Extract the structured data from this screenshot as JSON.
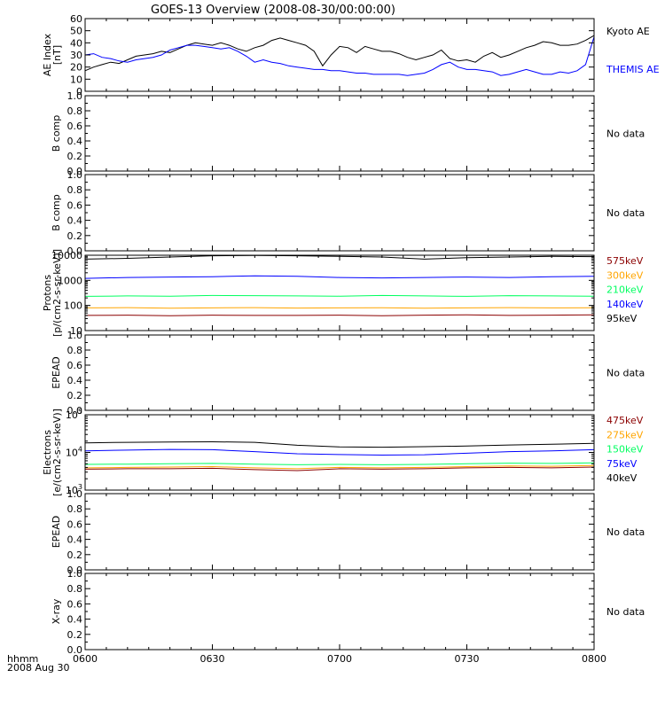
{
  "title": "GOES-13 Overview (2008-08-30/00:00:00)",
  "time_axis": {
    "label_line1": "hhmm",
    "label_line2": "2008 Aug 30",
    "ticks": [
      "0600",
      "0630",
      "0700",
      "0730",
      "0800"
    ],
    "range_minutes": [
      0,
      120
    ]
  },
  "colors": {
    "black": "#000000",
    "blue": "#0000ff",
    "green": "#00ff60",
    "orange": "#ffa500",
    "darkred": "#8b0000"
  },
  "chart_data": [
    {
      "type": "line",
      "ylabel": [
        "AE Index",
        "[nT]"
      ],
      "yticks": [
        "0",
        "10",
        "20",
        "30",
        "40",
        "50",
        "60"
      ],
      "ylim": [
        0,
        60
      ],
      "scale": "linear",
      "series": [
        {
          "name": "Kyoto AE",
          "color": "#000000",
          "x": [
            0,
            2,
            4,
            6,
            8,
            10,
            12,
            14,
            16,
            18,
            20,
            22,
            24,
            26,
            28,
            30,
            32,
            34,
            36,
            38,
            40,
            42,
            44,
            46,
            48,
            50,
            52,
            54,
            56,
            58,
            60,
            62,
            64,
            66,
            68,
            70,
            72,
            74,
            76,
            78,
            80,
            82,
            84,
            86,
            88,
            90,
            92,
            94,
            96,
            98,
            100,
            102,
            104,
            106,
            108,
            110,
            112,
            114,
            116,
            118,
            120
          ],
          "y": [
            17,
            20,
            22,
            24,
            23,
            26,
            29,
            30,
            31,
            33,
            32,
            35,
            38,
            40,
            39,
            38,
            40,
            38,
            35,
            33,
            36,
            38,
            42,
            44,
            42,
            40,
            38,
            33,
            21,
            30,
            37,
            36,
            32,
            37,
            35,
            33,
            33,
            31,
            28,
            26,
            28,
            30,
            34,
            27,
            25,
            26,
            24,
            29,
            32,
            28,
            30,
            33,
            36,
            38,
            41,
            40,
            38,
            38,
            39,
            42,
            46
          ]
        },
        {
          "name": "THEMIS AE",
          "color": "#0000ff",
          "x": [
            0,
            2,
            4,
            6,
            8,
            10,
            12,
            14,
            16,
            18,
            20,
            22,
            24,
            26,
            28,
            30,
            32,
            34,
            36,
            38,
            40,
            42,
            44,
            46,
            48,
            50,
            52,
            54,
            56,
            58,
            60,
            62,
            64,
            66,
            68,
            70,
            72,
            74,
            76,
            78,
            80,
            82,
            84,
            86,
            88,
            90,
            92,
            94,
            96,
            98,
            100,
            102,
            104,
            106,
            108,
            110,
            112,
            114,
            116,
            118,
            120
          ],
          "y": [
            30,
            31,
            28,
            27,
            25,
            24,
            26,
            27,
            28,
            30,
            34,
            36,
            38,
            38,
            37,
            36,
            35,
            36,
            33,
            29,
            24,
            26,
            24,
            23,
            21,
            20,
            19,
            18,
            18,
            17,
            17,
            16,
            15,
            15,
            14,
            14,
            14,
            14,
            13,
            14,
            15,
            18,
            22,
            24,
            20,
            18,
            18,
            17,
            16,
            13,
            14,
            16,
            18,
            16,
            14,
            14,
            16,
            15,
            17,
            22,
            45
          ]
        }
      ]
    },
    {
      "type": "line",
      "ylabel": [
        "B comp"
      ],
      "yticks": [
        "0.0",
        "0.2",
        "0.4",
        "0.6",
        "0.8",
        "1.0"
      ],
      "ylim": [
        0,
        1
      ],
      "scale": "linear",
      "note": "No data",
      "series": []
    },
    {
      "type": "line",
      "ylabel": [
        "B comp"
      ],
      "yticks": [
        "0.0",
        "0.2",
        "0.4",
        "0.6",
        "0.8",
        "1.0"
      ],
      "ylim": [
        0,
        1
      ],
      "scale": "linear",
      "note": "No data",
      "series": []
    },
    {
      "type": "line",
      "ylabel": [
        "Protons",
        "[p/(cm2-s-sr-keV)]"
      ],
      "yticks": [
        "10",
        "100",
        "1000",
        "10000"
      ],
      "ylim": [
        10,
        10000
      ],
      "scale": "log",
      "series": [
        {
          "name": "575keV",
          "color": "#8b0000",
          "x": [
            0,
            10,
            20,
            30,
            40,
            50,
            60,
            70,
            80,
            90,
            100,
            110,
            120
          ],
          "y": [
            40,
            41,
            39,
            41,
            40,
            40,
            41,
            39,
            41,
            42,
            40,
            41,
            42
          ]
        },
        {
          "name": "300keV",
          "color": "#ffa500",
          "x": [
            0,
            10,
            20,
            30,
            40,
            50,
            60,
            70,
            80,
            90,
            100,
            110,
            120
          ],
          "y": [
            80,
            82,
            78,
            80,
            82,
            79,
            80,
            81,
            78,
            80,
            82,
            80,
            81
          ]
        },
        {
          "name": "210keV",
          "color": "#00ff60",
          "x": [
            0,
            10,
            20,
            30,
            40,
            50,
            60,
            70,
            80,
            90,
            100,
            110,
            120
          ],
          "y": [
            230,
            240,
            235,
            250,
            245,
            240,
            235,
            250,
            240,
            230,
            245,
            240,
            235
          ]
        },
        {
          "name": "140keV",
          "color": "#0000ff",
          "x": [
            0,
            10,
            20,
            30,
            40,
            50,
            60,
            70,
            80,
            90,
            100,
            110,
            120
          ],
          "y": [
            1200,
            1300,
            1350,
            1400,
            1500,
            1450,
            1300,
            1250,
            1300,
            1350,
            1300,
            1400,
            1450
          ]
        },
        {
          "name": "95keV",
          "color": "#000000",
          "x": [
            0,
            10,
            20,
            30,
            40,
            50,
            60,
            70,
            80,
            90,
            100,
            110,
            120
          ],
          "y": [
            7000,
            7500,
            8500,
            9500,
            9800,
            9500,
            9000,
            8500,
            7000,
            8000,
            8500,
            9000,
            8800
          ]
        }
      ]
    },
    {
      "type": "line",
      "ylabel": [
        "EPEAD"
      ],
      "yticks": [
        "0.0",
        "0.2",
        "0.4",
        "0.6",
        "0.8",
        "1.0"
      ],
      "ylim": [
        0,
        1
      ],
      "scale": "linear",
      "note": "No data",
      "series": []
    },
    {
      "type": "line",
      "ylabel": [
        "Electrons",
        "[e/(cm2-s-sr-keV)]"
      ],
      "yticks": [
        "10^3",
        "10^4",
        "10^5"
      ],
      "ylim": [
        1000,
        100000
      ],
      "scale": "log",
      "series": [
        {
          "name": "475keV",
          "color": "#8b0000",
          "x": [
            0,
            10,
            20,
            30,
            40,
            50,
            60,
            70,
            80,
            90,
            100,
            110,
            120
          ],
          "y": [
            3600,
            3700,
            3700,
            3800,
            3500,
            3300,
            3700,
            3600,
            3700,
            3900,
            4000,
            3900,
            4100
          ]
        },
        {
          "name": "275keV",
          "color": "#ffa500",
          "x": [
            0,
            10,
            20,
            30,
            40,
            50,
            60,
            70,
            80,
            90,
            100,
            110,
            120
          ],
          "y": [
            3900,
            4000,
            4100,
            4200,
            3900,
            3700,
            4000,
            3900,
            4000,
            4200,
            4400,
            4300,
            4500
          ]
        },
        {
          "name": "150keV",
          "color": "#00ff60",
          "x": [
            0,
            10,
            20,
            30,
            40,
            50,
            60,
            70,
            80,
            90,
            100,
            110,
            120
          ],
          "y": [
            4800,
            4900,
            5000,
            5100,
            4900,
            4700,
            4800,
            4700,
            4800,
            5000,
            5200,
            5100,
            5300
          ]
        },
        {
          "name": "75keV",
          "color": "#0000ff",
          "x": [
            0,
            10,
            20,
            30,
            40,
            50,
            60,
            70,
            80,
            90,
            100,
            110,
            120
          ],
          "y": [
            11000,
            11500,
            12000,
            11800,
            10500,
            9200,
            8800,
            8500,
            8700,
            9500,
            10500,
            11000,
            11800
          ]
        },
        {
          "name": "40keV",
          "color": "#000000",
          "x": [
            0,
            10,
            20,
            30,
            40,
            50,
            60,
            70,
            80,
            90,
            100,
            110,
            120
          ],
          "y": [
            18000,
            18500,
            19000,
            19200,
            18500,
            15500,
            14000,
            13800,
            14200,
            14800,
            15800,
            16500,
            17500
          ]
        }
      ]
    },
    {
      "type": "line",
      "ylabel": [
        "EPEAD"
      ],
      "yticks": [
        "0.0",
        "0.2",
        "0.4",
        "0.6",
        "0.8",
        "1.0"
      ],
      "ylim": [
        0,
        1
      ],
      "scale": "linear",
      "note": "No data",
      "series": []
    },
    {
      "type": "line",
      "ylabel": [
        "X-ray"
      ],
      "yticks": [
        "0.0",
        "0.2",
        "0.4",
        "0.6",
        "0.8",
        "1.0"
      ],
      "ylim": [
        0,
        1
      ],
      "scale": "linear",
      "note": "No data",
      "series": []
    }
  ]
}
